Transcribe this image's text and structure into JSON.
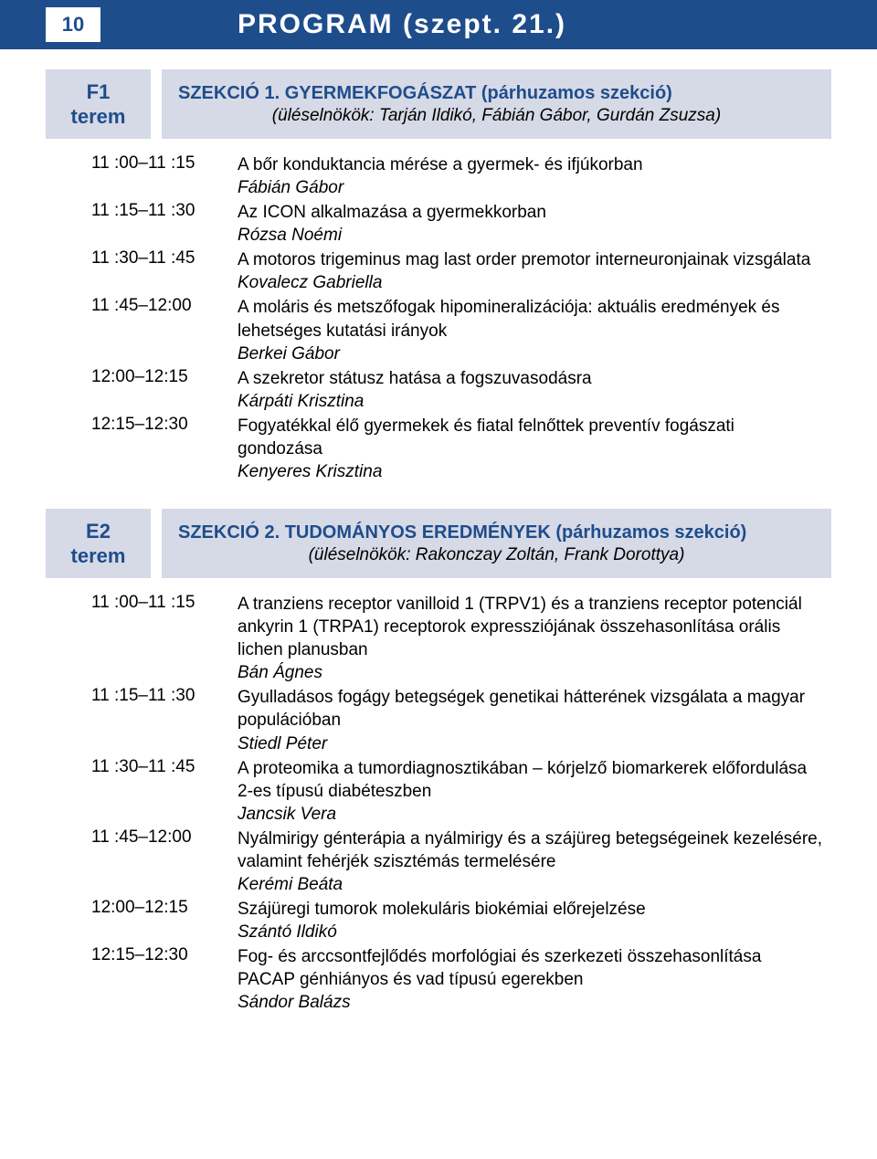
{
  "header": {
    "page_number": "10",
    "title": "PROGRAM (szept. 21.)"
  },
  "sections": [
    {
      "room": {
        "code": "F1",
        "label": "terem"
      },
      "title_main": "SZEKCIÓ 1. GYERMEKFOGÁSZAT (párhuzamos szekció)",
      "title_sub": "(üléselnökök: Tarján Ildikó, Fábián Gábor, Gurdán Zsuzsa)",
      "entries": [
        {
          "time": "11 :00–11 :15",
          "desc": "A bőr konduktancia mérése a gyermek- és ifjúkorban",
          "author": "Fábián Gábor"
        },
        {
          "time": "11 :15–11 :30",
          "desc": "Az ICON alkalmazása a gyermekkorban",
          "author": "Rózsa Noémi"
        },
        {
          "time": "11 :30–11 :45",
          "desc": "A motoros trigeminus mag last order premotor interneuronjainak vizsgálata",
          "author": "Kovalecz Gabriella"
        },
        {
          "time": "11 :45–12:00",
          "desc": "A moláris és metszőfogak hipomineralizációja: aktuális eredmények és lehetséges kutatási irányok",
          "author": "Berkei Gábor"
        },
        {
          "time": "12:00–12:15",
          "desc": "A szekretor státusz hatása a fogszuvasodásra",
          "author": "Kárpáti Krisztina"
        },
        {
          "time": "12:15–12:30",
          "desc": "Fogyatékkal élő gyermekek és fiatal felnőttek preventív fogászati gondozása",
          "author": "Kenyeres Krisztina"
        }
      ]
    },
    {
      "room": {
        "code": "E2",
        "label": "terem"
      },
      "title_main": "SZEKCIÓ 2. TUDOMÁNYOS EREDMÉNYEK (párhuzamos szekció)",
      "title_sub": "(üléselnökök: Rakonczay Zoltán, Frank Dorottya)",
      "entries": [
        {
          "time": "11 :00–11 :15",
          "desc": "A tranziens receptor vanilloid 1 (TRPV1) és a tranziens receptor potenciál ankyrin 1 (TRPA1) receptorok expressziójának összehasonlítása orális lichen planusban",
          "author": "Bán Ágnes"
        },
        {
          "time": "11 :15–11 :30",
          "desc": "Gyulladásos fogágy betegségek genetikai hátterének vizsgálata a magyar populációban",
          "author": "Stiedl Péter"
        },
        {
          "time": "11 :30–11 :45",
          "desc": "A proteomika a tumordiagnosztikában – kórjelző biomarkerek előfordulása 2-es típusú diabéteszben",
          "author": "Jancsik Vera"
        },
        {
          "time": "11 :45–12:00",
          "desc": "Nyálmirigy génterápia a nyálmirigy és a szájüreg betegségeinek kezelésére, valamint fehérjék szisztémás termelésére",
          "author": "Kerémi Beáta"
        },
        {
          "time": "12:00–12:15",
          "desc": "Szájüregi tumorok molekuláris biokémiai előrejelzése",
          "author": "Szántó Ildikó"
        },
        {
          "time": "12:15–12:30",
          "desc": "Fog- és arccsontfejlődés morfológiai és szerkezeti össze­hasonlítása PACAP génhiányos és vad típusú egerekben",
          "author": "Sándor Balázs"
        }
      ]
    }
  ],
  "colors": {
    "header_bg": "#1e4d8c",
    "header_text": "#ffffff",
    "box_bg": "#d6d9e6",
    "accent_text": "#1e4d8c"
  }
}
